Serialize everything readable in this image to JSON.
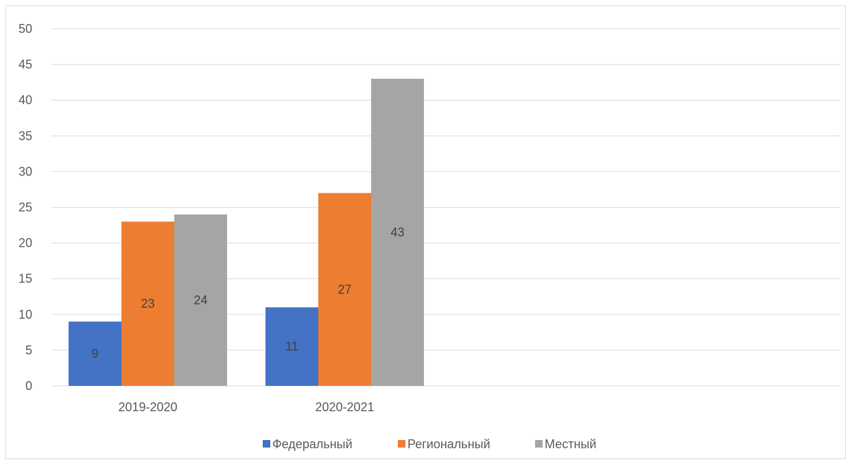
{
  "chart_data": {
    "type": "bar",
    "categories": [
      "2019-2020",
      "2020-2021"
    ],
    "series": [
      {
        "name": "Федеральный",
        "values": [
          9,
          11
        ],
        "color": "#4472c4"
      },
      {
        "name": "Региональный",
        "values": [
          23,
          27
        ],
        "color": "#ed7d31"
      },
      {
        "name": "Местный",
        "values": [
          24,
          43
        ],
        "color": "#a5a5a5"
      }
    ],
    "ylim": [
      0,
      50
    ],
    "yticks": [
      "0",
      "5",
      "10",
      "15",
      "20",
      "25",
      "30",
      "35",
      "40",
      "45",
      "50"
    ],
    "grid": true,
    "legend_position": "bottom",
    "data_labels": true,
    "colors": {
      "gridline": "#d9d9d9",
      "axis_text": "#595959",
      "label_text": "#404040"
    }
  }
}
